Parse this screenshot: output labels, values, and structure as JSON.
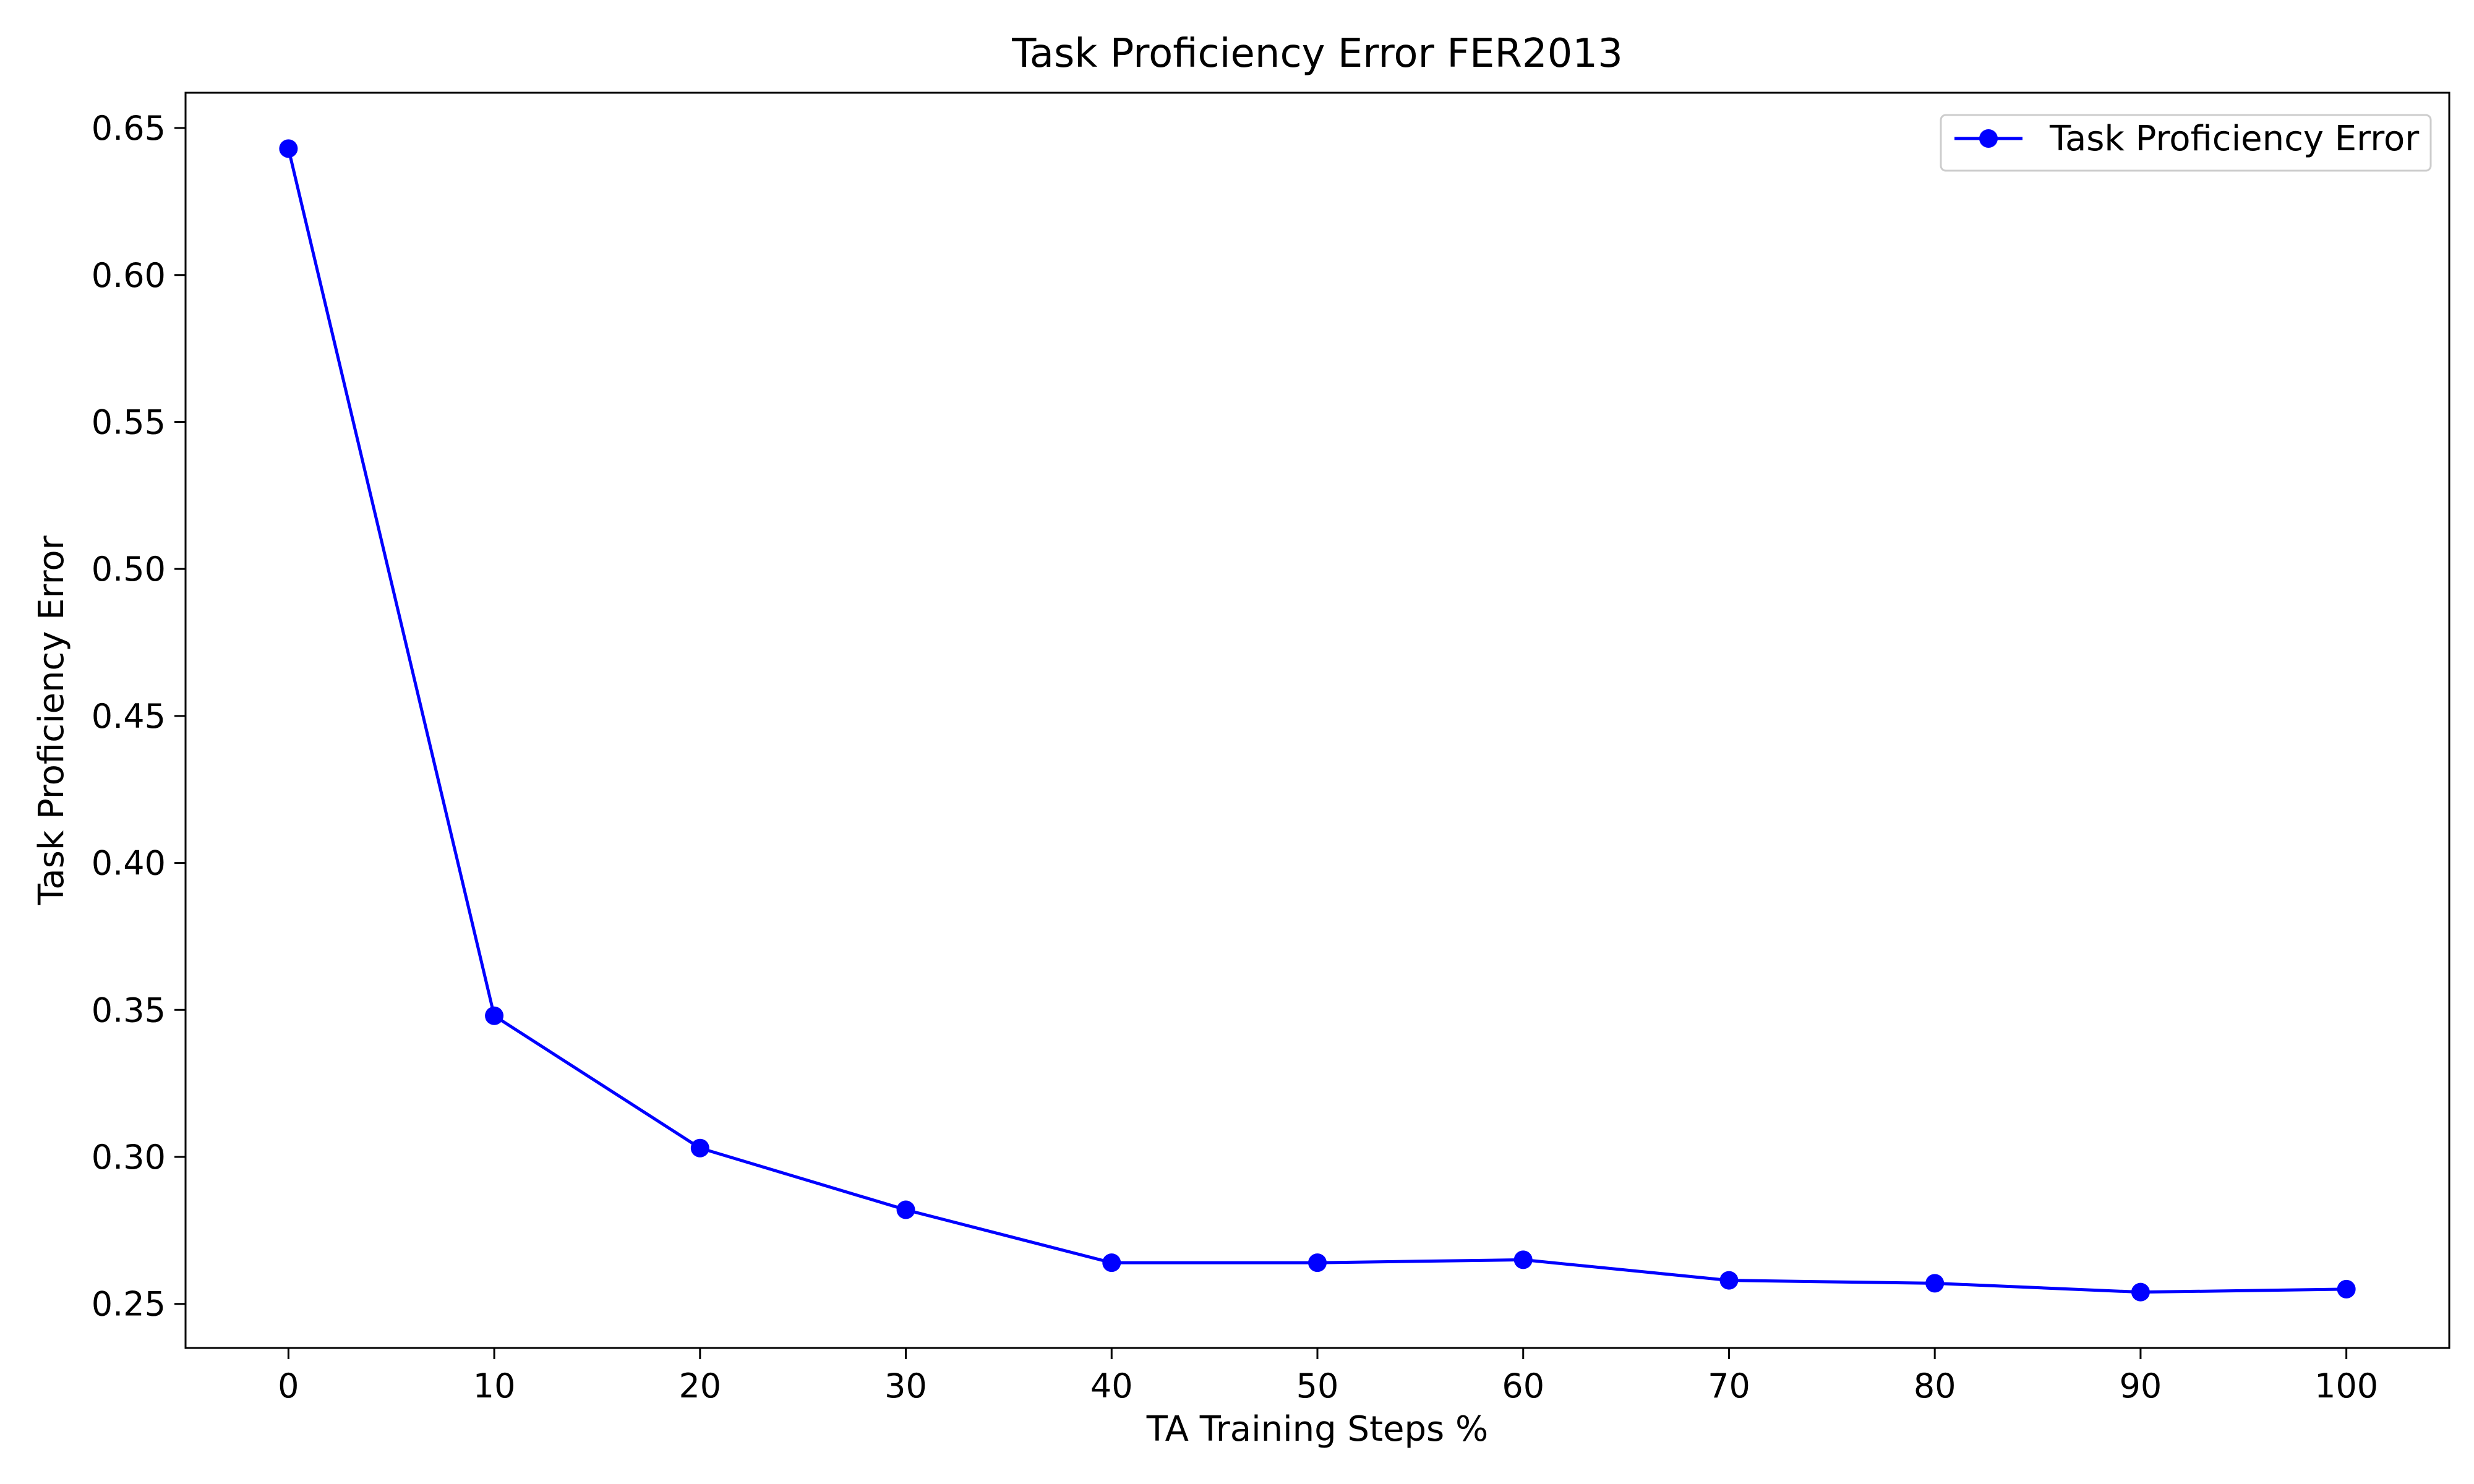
{
  "chart_data": {
    "type": "line",
    "title": "Task Proficiency Error FER2013",
    "xlabel": "TA Training Steps %",
    "ylabel": "Task Proficiency Error",
    "x": [
      0,
      10,
      20,
      30,
      40,
      50,
      60,
      70,
      80,
      90,
      100
    ],
    "series": [
      {
        "name": "Task Proficiency Error",
        "color": "#0000ff",
        "marker": "circle",
        "values": [
          0.643,
          0.348,
          0.303,
          0.282,
          0.264,
          0.264,
          0.265,
          0.258,
          0.257,
          0.254,
          0.255
        ]
      }
    ],
    "xlim": [
      -5,
      105
    ],
    "ylim": [
      0.235,
      0.662
    ],
    "xticks": [
      0,
      10,
      20,
      30,
      40,
      50,
      60,
      70,
      80,
      90,
      100
    ],
    "yticks": [
      0.25,
      0.3,
      0.35,
      0.4,
      0.45,
      0.5,
      0.55,
      0.6,
      0.65
    ],
    "ytick_decimals": 2,
    "grid": false,
    "legend_position": "upper-right"
  }
}
